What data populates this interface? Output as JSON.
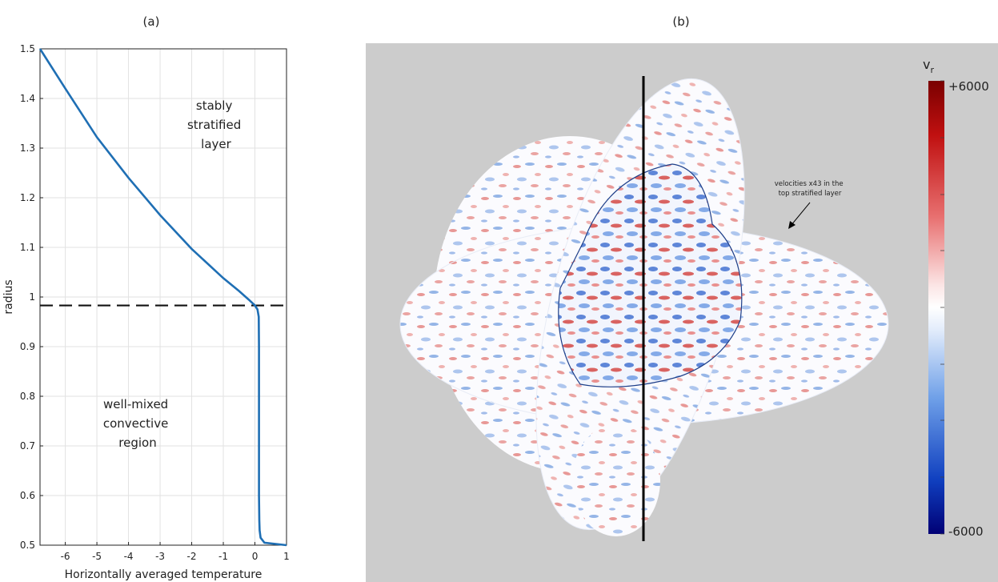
{
  "panel_a": {
    "label": "(a)",
    "xlabel": "Horizontally averaged temperature",
    "ylabel": "radius",
    "annotation_top": [
      "stably",
      "stratified",
      "layer"
    ],
    "annotation_bottom": [
      "well-mixed",
      "convective",
      "region"
    ]
  },
  "panel_b": {
    "label": "(b)",
    "annotation": [
      "velocities x43 in the",
      "top stratified layer"
    ],
    "colorbar_label": "v",
    "colorbar_label_sub": "r",
    "colorbar_max_label": "+6000",
    "colorbar_min_label": "-6000",
    "colors": {
      "background": "#cccccc",
      "max": "#800000",
      "mid": "#ffffff",
      "min": "#000080"
    }
  },
  "chart_data": [
    {
      "type": "line",
      "title": "(a)",
      "xlabel": "Horizontally averaged temperature",
      "ylabel": "radius",
      "xlim": [
        -6.8,
        1
      ],
      "ylim": [
        0.5,
        1.5
      ],
      "xticks": [
        -6,
        -5,
        -4,
        -3,
        -2,
        -1,
        0,
        1
      ],
      "yticks": [
        0.5,
        0.6,
        0.7,
        0.8,
        0.9,
        1,
        1.1,
        1.2,
        1.3,
        1.4,
        1.5
      ],
      "grid": true,
      "line_color": "#1f6fb4",
      "hline": {
        "y": 0.983,
        "style": "dashed"
      },
      "series": [
        {
          "x": [
            -6.8,
            -6.0,
            -5.0,
            -4.0,
            -3.0,
            -2.0,
            -1.0,
            -0.5,
            -0.2,
            0.0,
            0.08,
            0.12,
            0.13,
            0.13,
            0.13,
            0.14,
            0.15,
            0.18,
            0.3,
            1.0
          ],
          "y": [
            1.5,
            1.42,
            1.322,
            1.24,
            1.165,
            1.097,
            1.038,
            1.012,
            0.995,
            0.983,
            0.975,
            0.96,
            0.9,
            0.7,
            0.6,
            0.55,
            0.53,
            0.515,
            0.505,
            0.5
          ]
        }
      ]
    },
    {
      "type": "heatmap",
      "title": "(b)",
      "colorbar": {
        "label": "v_r",
        "min": -6000,
        "max": 6000,
        "colors": [
          "#000080",
          "#ffffff",
          "#800000"
        ]
      }
    }
  ]
}
